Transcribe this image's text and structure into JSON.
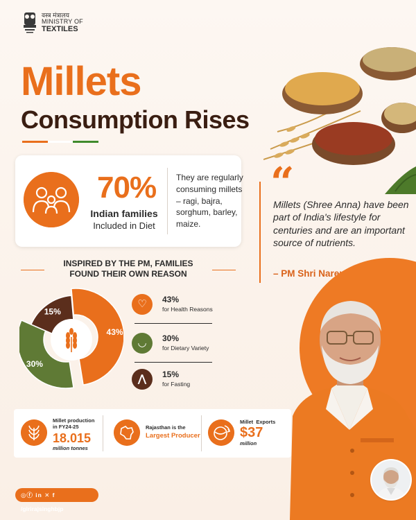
{
  "header": {
    "ministry_hindi": "वस्त्र मंत्रालय",
    "ministry_line1": "MINISTRY OF",
    "ministry_line2": "TEXTILES"
  },
  "title": {
    "line1": "Millets",
    "line2": "Consumption Rises"
  },
  "stat": {
    "percent": "70%",
    "label1": "Indian families",
    "label2": "Included in Diet",
    "description": "They are regularly consuming millets – ragi, bajra, sorghum, barley, maize."
  },
  "quote": {
    "mark": "“",
    "text": "Millets (Shree Anna) have been part of India's lifestyle for centuries and are an important source of nutrients.",
    "author": "– PM Shri Narendra Modi Ji"
  },
  "inspired": {
    "line1": "INSPIRED BY THE PM, FAMILIES",
    "line2": "FOUND THEIR OWN REASON"
  },
  "chart_data": {
    "type": "pie",
    "categories": [
      "Health Reasons",
      "Dietary Variety",
      "Fasting"
    ],
    "values": [
      43,
      30,
      15
    ],
    "labels": [
      "43%",
      "30%",
      "15%"
    ],
    "colors": [
      "#e96f1c",
      "#5f7a35",
      "#5b2e1c"
    ]
  },
  "reasons": [
    {
      "pct": "43%",
      "label": "for Health Reasons",
      "icon": "heart-pulse-icon",
      "color": "#e96f1c"
    },
    {
      "pct": "30%",
      "label": "for Dietary Variety",
      "icon": "bowl-icon",
      "color": "#5f7a35"
    },
    {
      "pct": "15%",
      "label": "for Fasting",
      "icon": "praying-hands-icon",
      "color": "#5b2e1c"
    }
  ],
  "bottom": {
    "production_label1": "Millet production",
    "production_label2": "in FY24-25",
    "production_value": "18.015",
    "production_unit": "million tonnes",
    "state_label1": "Rajasthan is the",
    "state_label2": "Largest Producer",
    "exports_label": "Millet  Exports",
    "exports_value": "$37",
    "exports_unit": "million"
  },
  "social": {
    "handle": "/girirajsinghbjp"
  },
  "colors": {
    "accent": "#e96f1c",
    "dark": "#3a1e12",
    "green": "#5f7a35",
    "brown": "#5b2e1c"
  }
}
